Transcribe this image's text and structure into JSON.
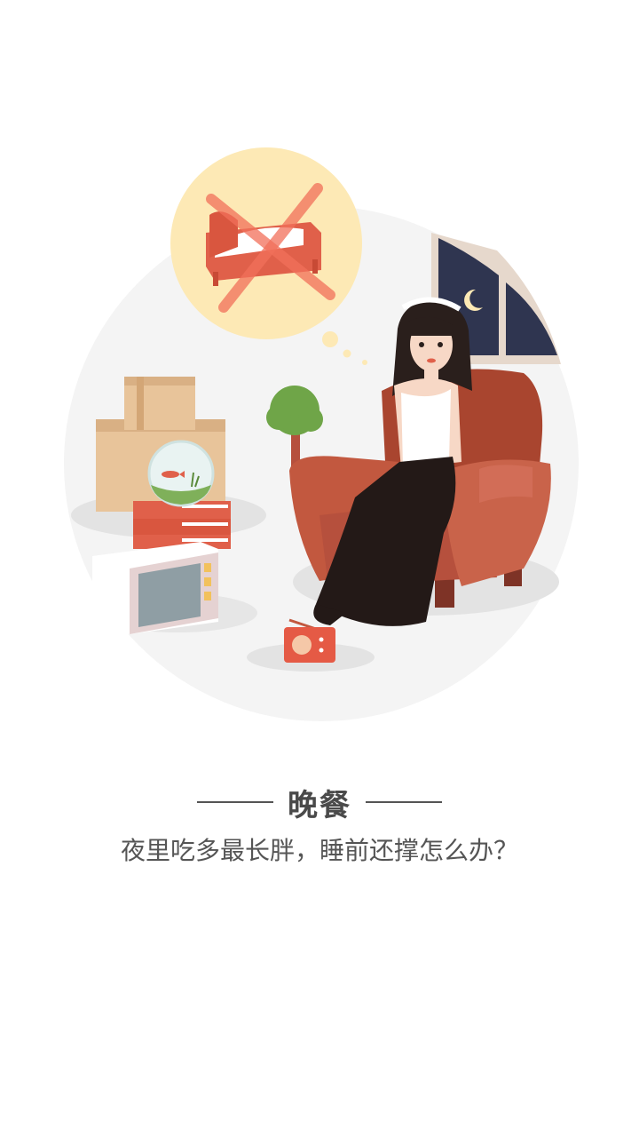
{
  "onboarding": {
    "title": "晚餐",
    "subtitle": "夜里吃多最长胖，睡前还撑怎么办？"
  },
  "illustration": {
    "icons": [
      "thought-bubble-icon",
      "crossed-bed-icon",
      "woman-figure",
      "armchair-icon",
      "window-moon-icon",
      "plant-icon",
      "boxes-icon",
      "fishbowl-icon",
      "books-icon",
      "tv-icon",
      "radio-icon"
    ]
  },
  "colors": {
    "bubble": "#fde9b5",
    "armchair": "#b6503d",
    "night_sky": "#2f3550",
    "background_circle": "#f4f4f4",
    "radio": "#e55a45"
  }
}
